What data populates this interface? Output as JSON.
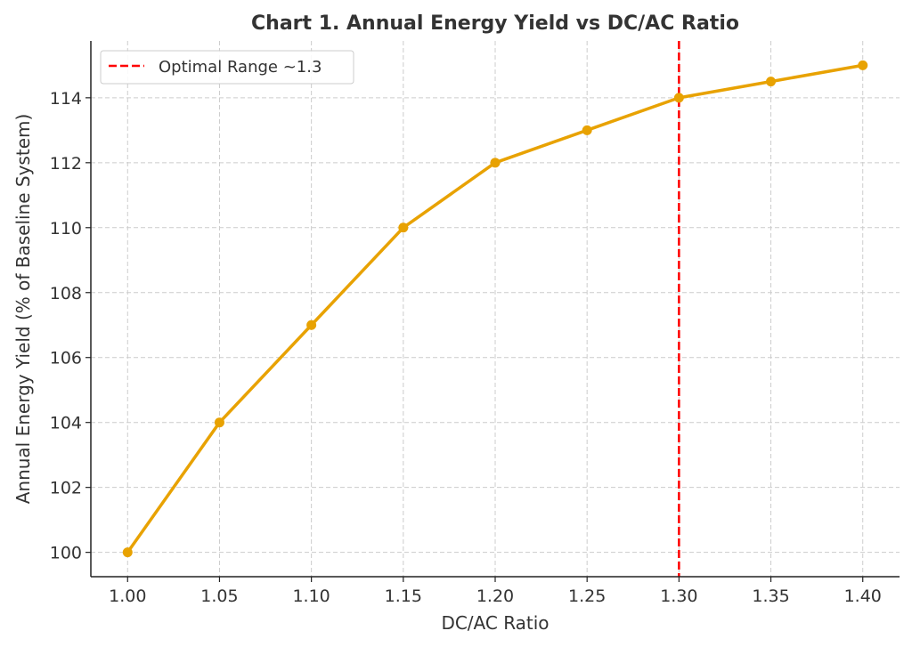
{
  "chart_data": {
    "type": "line",
    "title": "Chart 1. Annual Energy Yield vs DC/AC Ratio",
    "xlabel": "DC/AC Ratio",
    "ylabel": "Annual Energy Yield (% of Baseline System)",
    "x": [
      1.0,
      1.05,
      1.1,
      1.15,
      1.2,
      1.25,
      1.3,
      1.35,
      1.4
    ],
    "series": [
      {
        "values": [
          100,
          104,
          107,
          110,
          112,
          113,
          114,
          114.5,
          115
        ],
        "color": "#E8A202",
        "marker": "circle"
      }
    ],
    "xlim": [
      0.98,
      1.42
    ],
    "ylim": [
      99.25,
      115.75
    ],
    "xticks": [
      "1.00",
      "1.05",
      "1.10",
      "1.15",
      "1.20",
      "1.25",
      "1.30",
      "1.35",
      "1.40"
    ],
    "yticks": [
      "100",
      "102",
      "104",
      "106",
      "108",
      "110",
      "112",
      "114"
    ],
    "grid": true,
    "reference_line": {
      "orientation": "vertical",
      "x": 1.3,
      "color": "#FF0000",
      "style": "dashed",
      "name": "Optimal Range ~1.3"
    },
    "legend": {
      "placement": "top-left",
      "entries": [
        "Optimal Range ~1.3"
      ]
    }
  }
}
